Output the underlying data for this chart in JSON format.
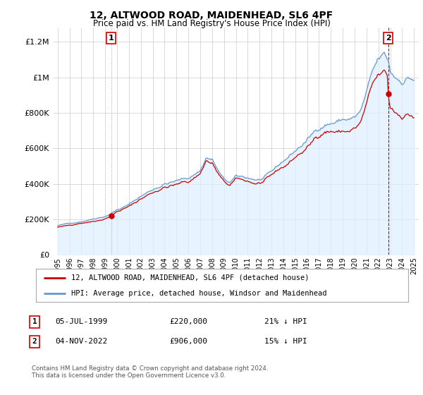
{
  "title": "12, ALTWOOD ROAD, MAIDENHEAD, SL6 4PF",
  "subtitle": "Price paid vs. HM Land Registry's House Price Index (HPI)",
  "legend_line1": "12, ALTWOOD ROAD, MAIDENHEAD, SL6 4PF (detached house)",
  "legend_line2": "HPI: Average price, detached house, Windsor and Maidenhead",
  "table_row1_label": "1",
  "table_row1_date": "05-JUL-1999",
  "table_row1_price": "£220,000",
  "table_row1_hpi": "21% ↓ HPI",
  "table_row2_label": "2",
  "table_row2_date": "04-NOV-2022",
  "table_row2_price": "£906,000",
  "table_row2_hpi": "15% ↓ HPI",
  "footer": "Contains HM Land Registry data © Crown copyright and database right 2024.\nThis data is licensed under the Open Government Licence v3.0.",
  "marker1_year": 1999.5,
  "marker1_value": 220000,
  "marker2_year": 2022.83,
  "marker2_value": 906000,
  "red_color": "#cc0000",
  "blue_color": "#6699cc",
  "blue_fill_color": "#ddeeff",
  "dashed_red": "#cc0000",
  "grid_color": "#cccccc",
  "background_color": "#ffffff",
  "plot_bg_color": "#ffffff"
}
